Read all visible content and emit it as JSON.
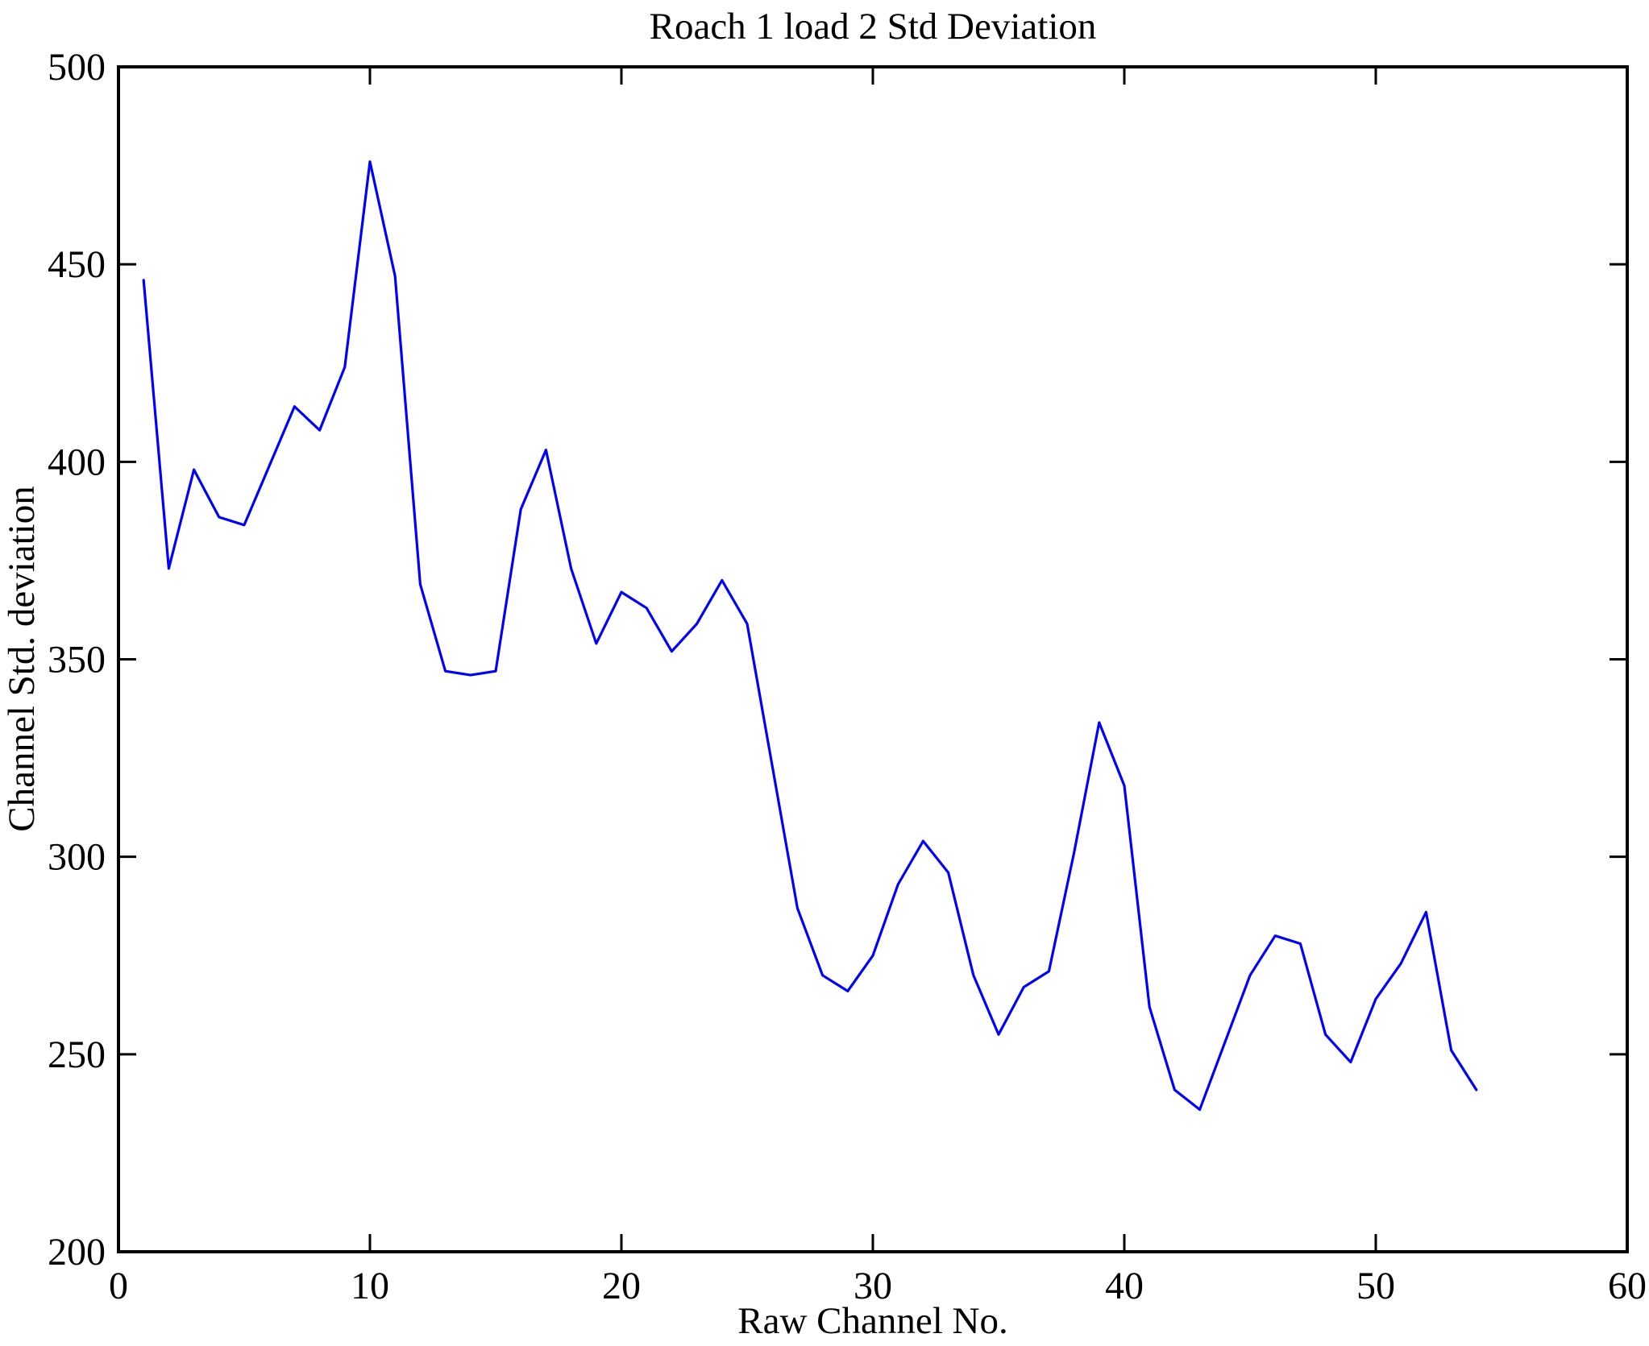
{
  "chart_data": {
    "type": "line",
    "title": "Roach 1 load 2 Std Deviation",
    "xlabel": "Raw Channel No.",
    "ylabel": "Channel Std. deviation",
    "x": [
      1,
      2,
      3,
      4,
      5,
      6,
      7,
      8,
      9,
      10,
      11,
      12,
      13,
      14,
      15,
      16,
      17,
      18,
      19,
      20,
      21,
      22,
      23,
      24,
      25,
      26,
      27,
      28,
      29,
      30,
      31,
      32,
      33,
      34,
      35,
      36,
      37,
      38,
      39,
      40,
      41,
      42,
      43,
      44,
      45,
      46,
      47,
      48,
      49,
      50,
      51,
      52,
      53,
      54
    ],
    "values": [
      446,
      373,
      398,
      386,
      384,
      399,
      414,
      408,
      424,
      476,
      447,
      369,
      347,
      346,
      347,
      388,
      403,
      373,
      354,
      367,
      363,
      352,
      359,
      370,
      359,
      323,
      287,
      270,
      266,
      275,
      293,
      304,
      296,
      270,
      255,
      267,
      271,
      301,
      334,
      318,
      262,
      241,
      236,
      253,
      270,
      280,
      278,
      255,
      248,
      264,
      273,
      286,
      251,
      241
    ],
    "xlim": [
      0,
      60
    ],
    "ylim": [
      200,
      500
    ],
    "xticks": [
      0,
      10,
      20,
      30,
      40,
      50,
      60
    ],
    "yticks": [
      200,
      250,
      300,
      350,
      400,
      450,
      500
    ],
    "line_color": "#0000FF",
    "axis_color": "#000000",
    "background": "#FFFFFF",
    "grid": false,
    "legend": null
  }
}
